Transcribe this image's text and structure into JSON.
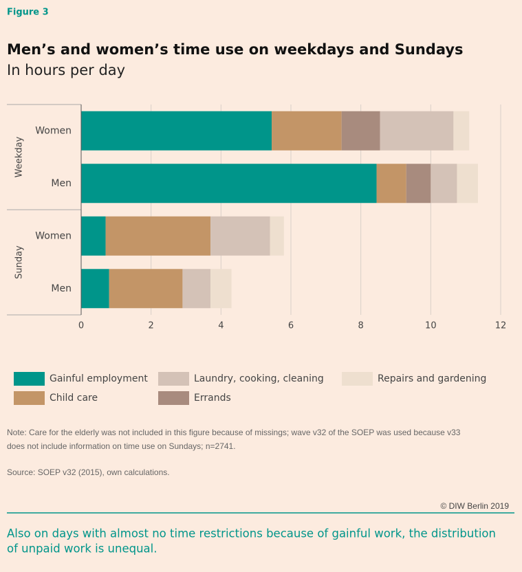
{
  "chart_data": {
    "type": "stacked_barh",
    "figure_label": "Figure 3",
    "title": "Men’s and women’s time use on weekdays and Sundays",
    "subtitle": "In hours per day",
    "groups": [
      "Weekday",
      "Sunday"
    ],
    "categories": [
      "Women",
      "Men",
      "Women",
      "Men"
    ],
    "series": [
      {
        "name": "Gainful employment",
        "color": "#00958a",
        "values": [
          5.45,
          8.45,
          0.7,
          0.8
        ]
      },
      {
        "name": "Child care",
        "color": "#c39567",
        "values": [
          2.0,
          0.85,
          3.0,
          2.1
        ]
      },
      {
        "name": "Errands",
        "color": "#a88b7e",
        "values": [
          1.1,
          0.7,
          0,
          0
        ]
      },
      {
        "name": "Laundry, cooking, cleaning",
        "color": "#d4c2b7",
        "values": [
          2.1,
          0.75,
          1.7,
          0.8
        ]
      },
      {
        "name": "Repairs and gardening",
        "color": "#eedfcf",
        "values": [
          0.45,
          0.6,
          0.4,
          0.6
        ]
      }
    ],
    "xlim": [
      0,
      12
    ],
    "xticks": [
      0,
      2,
      4,
      6,
      8,
      10,
      12
    ],
    "grid": true,
    "note": [
      "Note: Care for the elderly was not included in this figure because of missings; wave v32 of the SOEP was used because v33",
      "does not include information on time use on Sundays; n=2741."
    ],
    "source": "Source: SOEP v32 (2015), own calculations.",
    "credit": "© DIW Berlin 2019",
    "caption": [
      "Also on days with almost no time restrictions because of gainful work, the distribution",
      "of unpaid work is unequal."
    ]
  }
}
